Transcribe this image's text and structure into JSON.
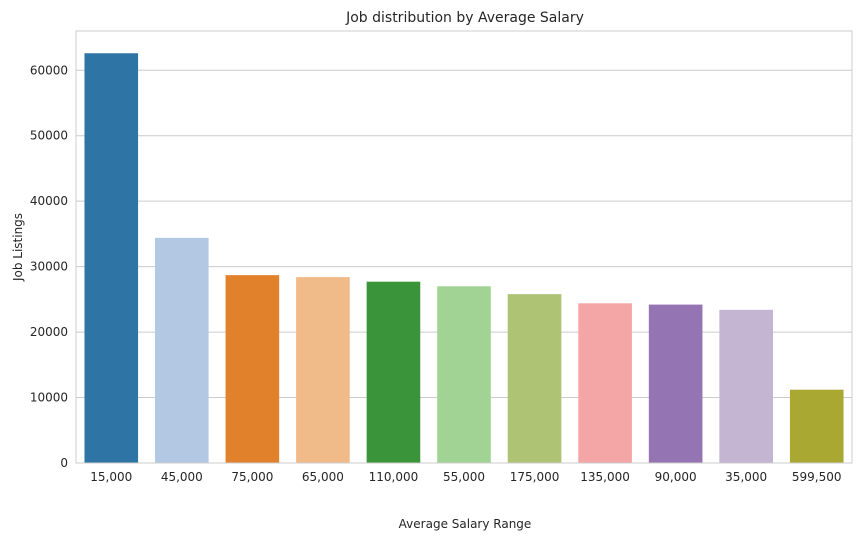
{
  "chart_data": {
    "type": "bar",
    "title": "Job distribution by Average Salary",
    "xlabel": "Average Salary Range",
    "ylabel": "Job Listings",
    "categories": [
      "15,000",
      "45,000",
      "75,000",
      "65,000",
      "110,000",
      "55,000",
      "175,000",
      "135,000",
      "90,000",
      "35,000",
      "599,500"
    ],
    "values": [
      62600,
      34400,
      28700,
      28400,
      27700,
      27000,
      25800,
      24400,
      24200,
      23400,
      11200
    ],
    "colors": [
      "#2e75a6",
      "#b3c9e3",
      "#e2812c",
      "#f0bb88",
      "#3a953a",
      "#a0d394",
      "#aec374",
      "#f4a5a5",
      "#9474b3",
      "#c4b5d2",
      "#a8a833"
    ],
    "ylim": [
      0,
      66000
    ],
    "yticks": [
      0,
      10000,
      20000,
      30000,
      40000,
      50000,
      60000
    ],
    "grid": "horizontal",
    "legend": "none"
  }
}
